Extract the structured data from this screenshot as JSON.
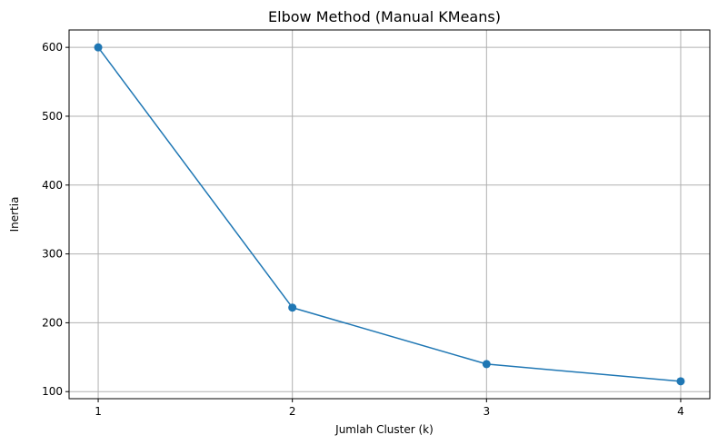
{
  "chart_data": {
    "type": "line",
    "title": "Elbow Method (Manual KMeans)",
    "xlabel": "Jumlah Cluster (k)",
    "ylabel": "Inertia",
    "x": [
      1,
      2,
      3,
      4
    ],
    "series": [
      {
        "values": [
          600,
          222,
          140,
          115
        ],
        "color": "#1f77b4",
        "marker": "circle"
      }
    ],
    "xticks": [
      "1",
      "2",
      "3",
      "4"
    ],
    "yticks": [
      "100",
      "200",
      "300",
      "400",
      "500",
      "600"
    ],
    "xlim": [
      0.85,
      4.15
    ],
    "ylim": [
      89.75,
      625.25
    ],
    "grid": true,
    "grid_color": "#b0b0b0",
    "axis_color": "#000000"
  }
}
